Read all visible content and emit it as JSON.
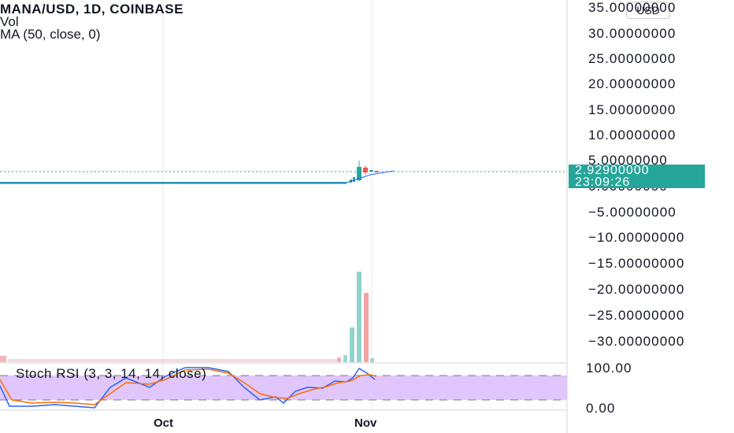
{
  "legend": {
    "symbol": "MANA/USD, 1D, COINBASE",
    "volume": "Vol",
    "ma": "MA (50, close, 0)"
  },
  "currency_button": "USD",
  "price_axis": [
    "35.00000000",
    "30.00000000",
    "25.00000000",
    "20.00000000",
    "15.00000000",
    "10.00000000",
    "5.00000000",
    "0.00000000",
    "−5.00000000",
    "−10.00000000",
    "−15.00000000",
    "−20.00000000",
    "−25.00000000",
    "−30.00000000"
  ],
  "price_badge": {
    "price": "2.92900000",
    "countdown": "23:09:26"
  },
  "stoch_rsi": {
    "label": "Stoch RSI (3, 3, 14, 14, close)",
    "axis": [
      "100.00",
      "0.00"
    ]
  },
  "dates": [
    "Oct",
    "Nov"
  ],
  "colors": {
    "up": "#26a69a",
    "down": "#ef5350",
    "ma": "#2962ff",
    "stoch_k": "#2962ff",
    "stoch_d": "#ff6d00",
    "band": "#e1c6fb"
  }
}
